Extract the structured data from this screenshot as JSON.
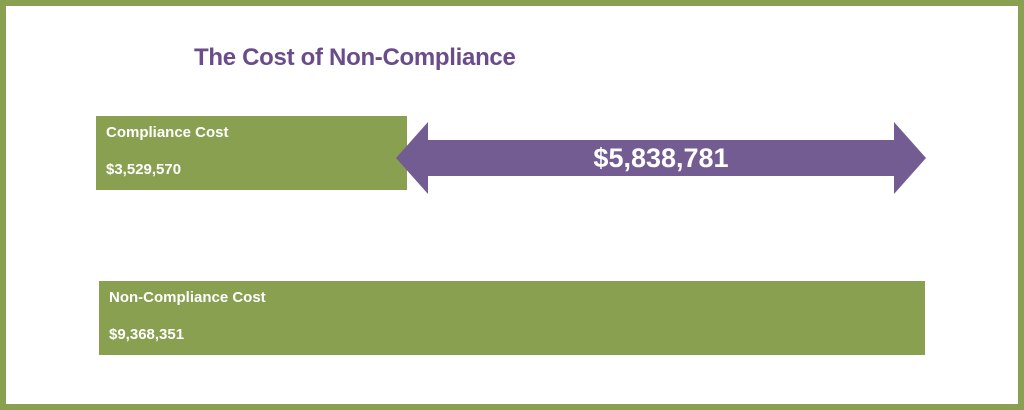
{
  "title": "The Cost of Non-Compliance",
  "colors": {
    "frame": "#89a050",
    "bar": "#89a050",
    "arrow": "#735c91",
    "title": "#6b4c8a",
    "bar_text": "#ffffff"
  },
  "chart_data": {
    "type": "bar",
    "orientation": "horizontal",
    "title": "The Cost of Non-Compliance",
    "categories": [
      "Compliance Cost",
      "Non-Compliance Cost"
    ],
    "values": [
      3529570,
      9368351
    ],
    "value_labels": [
      "$3,529,570",
      "$9,368,351"
    ],
    "difference": {
      "value": 5838781,
      "label": "$5,838,781",
      "shape": "double-headed-arrow"
    },
    "xlim": [
      0,
      9368351
    ],
    "grid": false,
    "legend": "none"
  }
}
